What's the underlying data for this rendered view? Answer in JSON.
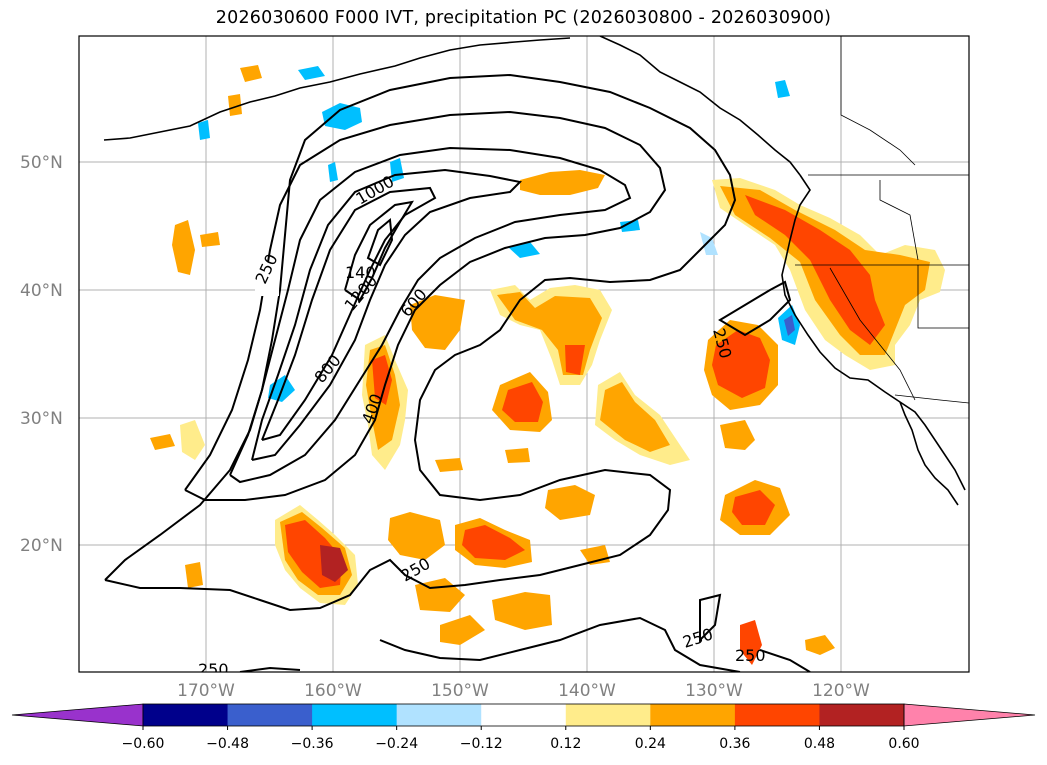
{
  "title": "2026030600 F000 IVT, precipitation PC (2026030800 - 2026030900)",
  "map": {
    "lat_labels": [
      "50°N",
      "40°N",
      "30°N",
      "20°N"
    ],
    "lon_labels": [
      "170°W",
      "160°W",
      "150°W",
      "140°W",
      "130°W",
      "120°W"
    ],
    "contour_labels": [
      "250",
      "250",
      "250",
      "250",
      "250",
      "250",
      "400",
      "600",
      "800",
      "1000",
      "1200",
      "140"
    ]
  },
  "colorbar": {
    "tick_labels": [
      "−0.60",
      "−0.48",
      "−0.36",
      "−0.24",
      "−0.12",
      "0.12",
      "0.24",
      "0.36",
      "0.48",
      "0.60"
    ],
    "colors": [
      "#9932cc",
      "#00008b",
      "#3a5fcd",
      "#00bfff",
      "#b0e2ff",
      "#ffffff",
      "#ffec8b",
      "#ffa500",
      "#ff4500",
      "#b22222",
      "#ff82ab"
    ]
  }
}
